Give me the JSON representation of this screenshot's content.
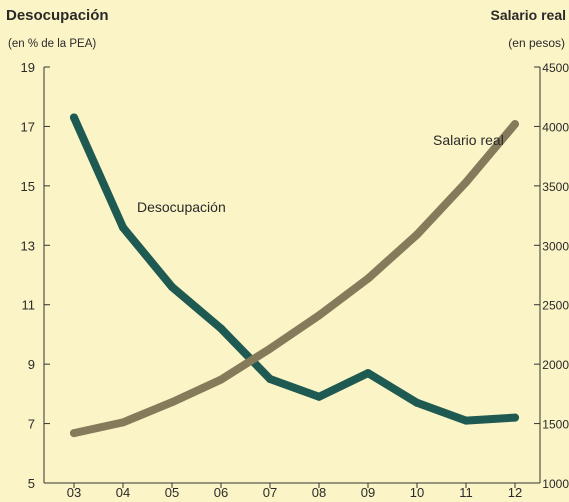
{
  "chart_data": {
    "type": "line",
    "title": "",
    "y_left": {
      "label": "Desocupación",
      "sublabel": "(en % de la PEA)",
      "range": [
        5,
        19
      ],
      "ticks": [
        "5",
        "7",
        "9",
        "11",
        "13",
        "15",
        "17",
        "19"
      ]
    },
    "y_right": {
      "label": "Salario real",
      "sublabel": "(en pesos)",
      "range": [
        1000,
        4500
      ],
      "ticks": [
        "1000",
        "1500",
        "2000",
        "2500",
        "3000",
        "3500",
        "4000",
        "4500"
      ]
    },
    "x": {
      "categories": [
        "03",
        "04",
        "05",
        "06",
        "07",
        "08",
        "09",
        "10",
        "11",
        "12"
      ]
    },
    "series": [
      {
        "name": "Desocupación",
        "axis": "left",
        "color": "#1f5a52",
        "values": [
          17.3,
          13.6,
          11.6,
          10.2,
          8.5,
          7.9,
          8.7,
          7.7,
          7.1,
          7.2
        ]
      },
      {
        "name": "Salario real",
        "axis": "right",
        "color": "#857a5a",
        "values": [
          1420,
          1510,
          1680,
          1870,
          2130,
          2410,
          2720,
          3090,
          3530,
          4020
        ]
      }
    ],
    "grid": false,
    "legend": "inline"
  }
}
